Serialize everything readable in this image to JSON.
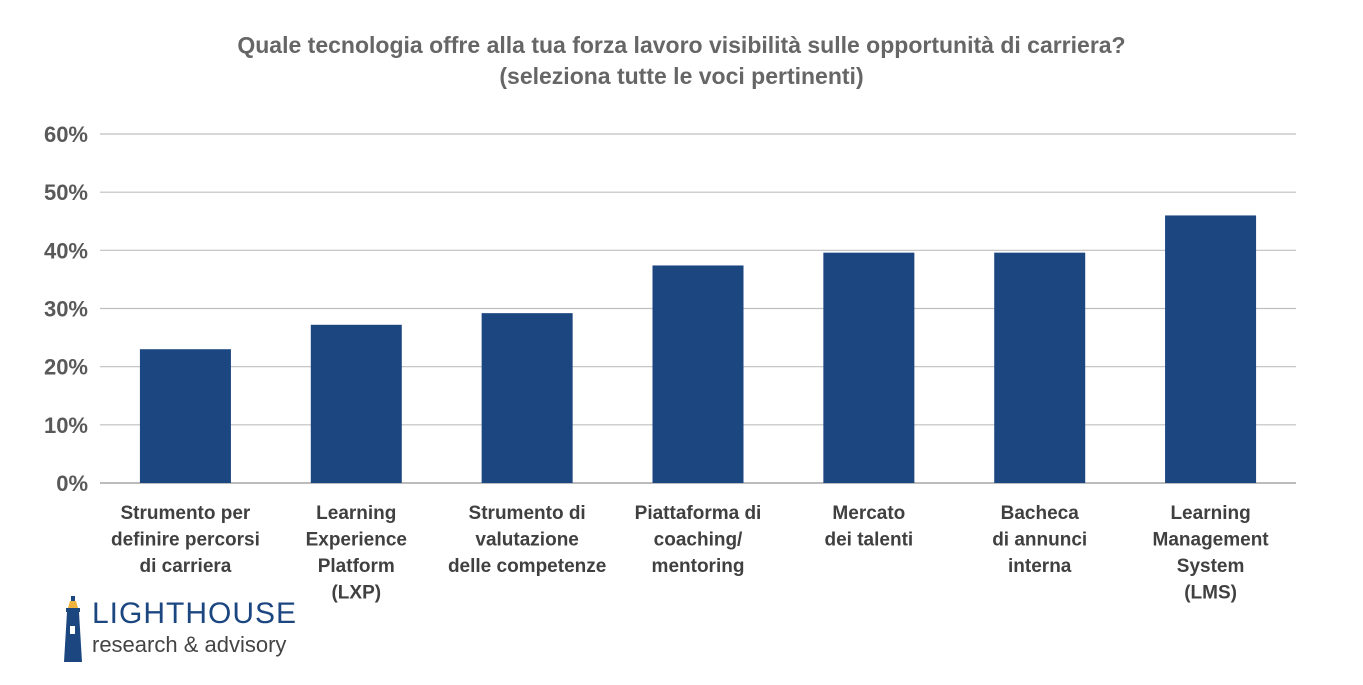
{
  "chart_data": {
    "type": "bar",
    "title": "Quale tecnologia offre alla tua forza lavoro visibilità sulle opportunità di carriera?",
    "subtitle": "(seleziona tutte le voci pertinenti)",
    "xlabel": "",
    "ylabel": "",
    "ylim": [
      0,
      60
    ],
    "yticks": [
      "0%",
      "10%",
      "20%",
      "30%",
      "40%",
      "50%",
      "60%"
    ],
    "grid": true,
    "bar_color": "#1b4680",
    "categories": [
      [
        "Strumento per",
        "definire percorsi",
        "di carriera"
      ],
      [
        "Learning",
        "Experience",
        "Platform",
        "(LXP)"
      ],
      [
        "Strumento di",
        "valutazione",
        "delle competenze"
      ],
      [
        "Piattaforma di",
        "coaching/",
        "mentoring"
      ],
      [
        "Mercato",
        "dei talenti"
      ],
      [
        "Bacheca",
        "di annunci",
        "interna"
      ],
      [
        "Learning",
        "Management",
        "System",
        "(LMS)"
      ]
    ],
    "values": [
      23,
      27.2,
      29.2,
      37.4,
      39.6,
      39.6,
      46
    ]
  },
  "logo": {
    "name": "LIGHTHOUSE",
    "tagline": "research & advisory",
    "icon": "lighthouse-icon",
    "color": "#1b4680",
    "accent": "#f2b33d"
  }
}
